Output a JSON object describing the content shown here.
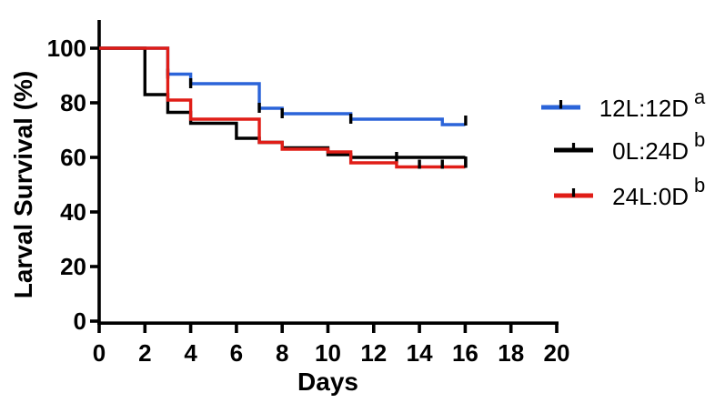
{
  "figure": {
    "background": "#ffffff"
  },
  "chart_data": {
    "type": "line",
    "subtype": "kaplan_meier_step_survival",
    "title": "",
    "xlabel": "Days",
    "ylabel": "Larval Survival (%)",
    "xlim": [
      0,
      20
    ],
    "ylim": [
      0,
      100
    ],
    "xticks": [
      0,
      2,
      4,
      6,
      8,
      10,
      12,
      14,
      16,
      18,
      20
    ],
    "yticks": [
      0,
      20,
      40,
      60,
      80,
      100
    ],
    "grid": false,
    "legend_position": "right",
    "axis_color": "#000000",
    "censor_tick_color": "#000000",
    "series": [
      {
        "name": "12L:12D",
        "significance_letter": "a",
        "color": "#2b64d9",
        "steps": [
          [
            0,
            100
          ],
          [
            3,
            90.5
          ],
          [
            4,
            87
          ],
          [
            7,
            78
          ],
          [
            8,
            76
          ],
          [
            11,
            74
          ],
          [
            15,
            72
          ]
        ],
        "end_day": 16,
        "censor_ticks": [
          [
            3,
            90.5
          ],
          [
            4,
            87
          ],
          [
            7,
            78
          ],
          [
            8,
            76
          ],
          [
            11,
            74
          ]
        ],
        "end_tick_direction": "up"
      },
      {
        "name": "0L:24D",
        "significance_letter": "b",
        "color": "#000000",
        "steps": [
          [
            0,
            100
          ],
          [
            2,
            83
          ],
          [
            3,
            76.5
          ],
          [
            4,
            72.5
          ],
          [
            6,
            67
          ],
          [
            7,
            65.5
          ],
          [
            8,
            63.5
          ],
          [
            10,
            61
          ],
          [
            11,
            60
          ]
        ],
        "end_day": 16,
        "censor_ticks": [
          [
            13,
            60
          ]
        ],
        "end_tick_direction": "down"
      },
      {
        "name": "24L:0D",
        "significance_letter": "b",
        "color": "#e01d17",
        "steps": [
          [
            0,
            100
          ],
          [
            3,
            81
          ],
          [
            4,
            74
          ],
          [
            7,
            65.5
          ],
          [
            8,
            63
          ],
          [
            10,
            62
          ],
          [
            11,
            58
          ],
          [
            13,
            56.5
          ]
        ],
        "end_day": 16,
        "censor_ticks": [
          [
            14,
            56.5
          ],
          [
            15,
            56.5
          ]
        ],
        "end_tick_direction": "up"
      }
    ]
  }
}
